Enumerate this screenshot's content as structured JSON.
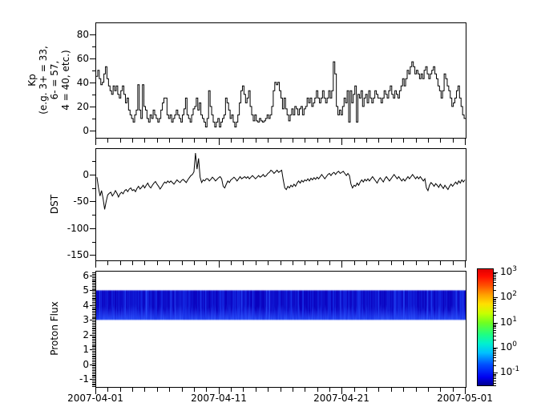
{
  "figure": {
    "background": "#ffffff",
    "line_color": "#000000"
  },
  "xaxis": {
    "total_days": 30,
    "major_days": [
      0,
      10,
      20,
      30
    ],
    "tick_labels": [
      "2007-04-01",
      "2007-04-11",
      "2007-04-21",
      "2007-05-01"
    ],
    "minor_step_days": 1
  },
  "chart_data": [
    {
      "type": "line",
      "subtype": "step",
      "name": "kp-index",
      "ylabel": "Kp\n(e.g. 3+ = 33,\n6- = 57,\n4 = 40, etc.)",
      "ylim": [
        -6,
        89
      ],
      "yticks": {
        "values": [
          0,
          20,
          40,
          60,
          80
        ],
        "labels": [
          "0",
          "20",
          "40",
          "60",
          "80"
        ]
      },
      "yminor": [
        10,
        30,
        50,
        70
      ],
      "x_range": [
        "2007-04-01",
        "2007-05-01"
      ],
      "points_per_day": 8,
      "values": [
        45,
        50,
        43,
        38,
        40,
        47,
        53,
        43,
        37,
        33,
        30,
        37,
        33,
        37,
        30,
        27,
        33,
        37,
        30,
        23,
        27,
        17,
        13,
        10,
        7,
        13,
        17,
        38,
        17,
        10,
        38,
        20,
        17,
        10,
        7,
        13,
        10,
        17,
        13,
        10,
        7,
        10,
        17,
        23,
        27,
        27,
        13,
        10,
        13,
        7,
        10,
        13,
        17,
        13,
        10,
        7,
        13,
        18,
        27,
        13,
        10,
        7,
        13,
        18,
        20,
        27,
        17,
        23,
        13,
        10,
        7,
        3,
        10,
        33,
        20,
        13,
        7,
        3,
        7,
        10,
        3,
        7,
        10,
        13,
        27,
        23,
        17,
        10,
        13,
        7,
        3,
        7,
        13,
        23,
        33,
        37,
        30,
        23,
        27,
        33,
        20,
        13,
        8,
        13,
        8,
        7,
        10,
        8,
        7,
        8,
        10,
        13,
        10,
        13,
        20,
        33,
        40,
        38,
        40,
        33,
        27,
        18,
        27,
        18,
        13,
        8,
        13,
        18,
        13,
        20,
        18,
        13,
        18,
        20,
        13,
        18,
        20,
        27,
        23,
        27,
        20,
        23,
        27,
        33,
        27,
        23,
        27,
        33,
        27,
        23,
        27,
        33,
        27,
        33,
        57,
        47,
        20,
        13,
        17,
        13,
        20,
        27,
        23,
        33,
        7,
        33,
        23,
        30,
        37,
        7,
        30,
        27,
        33,
        20,
        27,
        30,
        23,
        33,
        27,
        23,
        27,
        33,
        30,
        27,
        27,
        23,
        27,
        33,
        30,
        27,
        33,
        37,
        30,
        27,
        33,
        30,
        27,
        33,
        37,
        43,
        37,
        43,
        50,
        47,
        53,
        57,
        53,
        47,
        50,
        47,
        43,
        47,
        43,
        50,
        53,
        47,
        43,
        47,
        50,
        53,
        47,
        43,
        37,
        33,
        27,
        33,
        47,
        43,
        37,
        33,
        27,
        20,
        23,
        27,
        33,
        37,
        27,
        20,
        13,
        10
      ]
    },
    {
      "type": "line",
      "subtype": "plain",
      "name": "dst-index",
      "ylabel": "DST",
      "ylim": [
        -160,
        47.5
      ],
      "yticks": {
        "values": [
          0,
          -50,
          -100,
          -150
        ],
        "labels": [
          "0",
          "-50",
          "-100",
          "-150"
        ]
      },
      "yminor": [
        25,
        -25,
        -75,
        -125
      ],
      "x_range": [
        "2007-04-01",
        "2007-05-01"
      ],
      "points_per_day": 8,
      "values": [
        -5,
        -25,
        -40,
        -30,
        -45,
        -65,
        -50,
        -38,
        -35,
        -33,
        -40,
        -36,
        -30,
        -35,
        -42,
        -36,
        -33,
        -36,
        -30,
        -28,
        -32,
        -27,
        -25,
        -30,
        -28,
        -32,
        -26,
        -22,
        -27,
        -24,
        -20,
        -25,
        -20,
        -16,
        -22,
        -25,
        -20,
        -16,
        -13,
        -18,
        -22,
        -27,
        -23,
        -18,
        -14,
        -16,
        -12,
        -15,
        -12,
        -15,
        -18,
        -14,
        -10,
        -13,
        -15,
        -11,
        -9,
        -12,
        -15,
        -10,
        -6,
        -2,
        0,
        5,
        40,
        10,
        30,
        -5,
        -15,
        -10,
        -12,
        -8,
        -8,
        -12,
        -9,
        -5,
        -8,
        -12,
        -9,
        -6,
        -4,
        -8,
        -22,
        -25,
        -18,
        -12,
        -15,
        -10,
        -8,
        -5,
        -8,
        -12,
        -8,
        -4,
        -8,
        -6,
        -4,
        -7,
        -4,
        -8,
        -5,
        -2,
        -5,
        -8,
        -5,
        -2,
        -5,
        -3,
        0,
        -4,
        -2,
        2,
        4,
        8,
        6,
        2,
        5,
        8,
        4,
        6,
        8,
        -10,
        -25,
        -28,
        -22,
        -25,
        -20,
        -23,
        -18,
        -22,
        -16,
        -12,
        -16,
        -11,
        -14,
        -10,
        -12,
        -8,
        -12,
        -7,
        -10,
        -6,
        -9,
        -5,
        -8,
        -4,
        0,
        -4,
        -8,
        -4,
        0,
        2,
        -2,
        2,
        4,
        0,
        4,
        6,
        2,
        4,
        6,
        2,
        -2,
        2,
        -2,
        -18,
        -25,
        -20,
        -22,
        -16,
        -20,
        -14,
        -10,
        -14,
        -9,
        -12,
        -8,
        -12,
        -8,
        -4,
        -8,
        -12,
        -16,
        -10,
        -6,
        -10,
        -14,
        -8,
        -4,
        -8,
        -12,
        -8,
        -4,
        0,
        -4,
        -8,
        -4,
        -8,
        -12,
        -8,
        -12,
        -8,
        -4,
        -8,
        -4,
        0,
        -4,
        -8,
        -4,
        -8,
        -4,
        -8,
        -12,
        -8,
        -25,
        -30,
        -20,
        -15,
        -18,
        -22,
        -17,
        -20,
        -24,
        -18,
        -22,
        -26,
        -20,
        -24,
        -28,
        -22,
        -18,
        -22,
        -18,
        -14,
        -18,
        -12,
        -16,
        -10,
        -14,
        -10
      ]
    },
    {
      "type": "heatmap",
      "name": "proton-flux-spectrogram",
      "ylabel": "Proton Flux",
      "ylim": [
        -1.54,
        6.27
      ],
      "yticks": {
        "values": [
          -1,
          0,
          1,
          2,
          3,
          4,
          5,
          6
        ],
        "labels": [
          "-1",
          "0",
          "1",
          "2",
          "3",
          "4",
          "5",
          "6"
        ]
      },
      "yminor_step": 0.1,
      "x_range": [
        "2007-04-01",
        "2007-05-01"
      ],
      "band": {
        "value_min": 3,
        "value_max": 5,
        "description": "continuous low-flux blue band with vertical striations, brighter toward lower edge",
        "colors": {
          "dark": "#0a00be",
          "mid": "#1530e8",
          "bright": "#3158ff"
        }
      }
    }
  ],
  "colorbar": {
    "scale": "log",
    "exponents": [
      3,
      2,
      1,
      0,
      -1
    ],
    "labels": [
      {
        "base": "10",
        "exp": "3"
      },
      {
        "base": "10",
        "exp": "2"
      },
      {
        "base": "10",
        "exp": "1"
      },
      {
        "base": "10",
        "exp": "0"
      },
      {
        "base": "10",
        "exp": "-1"
      }
    ],
    "log_range": [
      -1.54,
      3.16
    ],
    "gradient": [
      [
        "#000090",
        0
      ],
      [
        "#0000f0",
        7
      ],
      [
        "#0050ff",
        18
      ],
      [
        "#00c0ff",
        28
      ],
      [
        "#00f0d0",
        36
      ],
      [
        "#20ff80",
        44
      ],
      [
        "#70ff20",
        54
      ],
      [
        "#c8ff00",
        62
      ],
      [
        "#ffe000",
        70
      ],
      [
        "#ffa000",
        78
      ],
      [
        "#ff5000",
        86
      ],
      [
        "#ff0c00",
        94
      ],
      [
        "#e00000",
        100
      ]
    ]
  }
}
